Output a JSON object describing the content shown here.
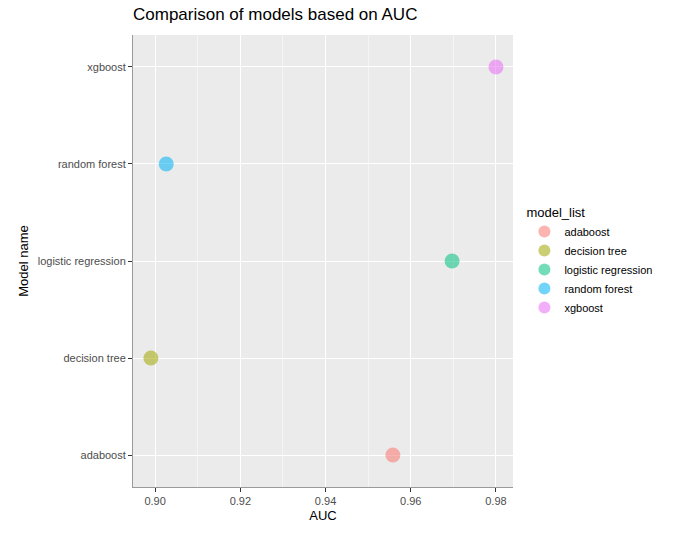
{
  "chart_data": {
    "type": "scatter",
    "title": "Comparison of models based on AUC",
    "x_label": "AUC",
    "y_label": "Model name",
    "legend_title": "model_list",
    "categories": [
      "adaboost",
      "decision tree",
      "logistic regression",
      "random forest",
      "xgboost"
    ],
    "values": [
      0.9558,
      0.899,
      0.9697,
      0.9026,
      0.98
    ],
    "colors": [
      "#F8766D",
      "#A3A500",
      "#00BF7D",
      "#00B0F6",
      "#E76BF3"
    ],
    "xlim": [
      0.8948,
      0.984
    ],
    "xticks": [
      {
        "value": 0.9,
        "label": "0.90"
      },
      0.92,
      0.94,
      0.96,
      0.98
    ],
    "grid": true,
    "legend": "right",
    "marker": "circle"
  }
}
